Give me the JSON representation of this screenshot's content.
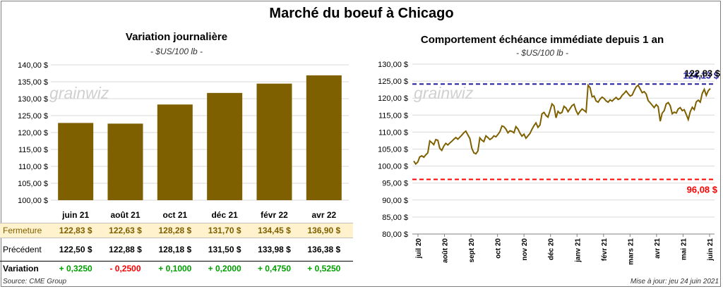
{
  "title": "Marché du boeuf à Chicago",
  "left": {
    "title": "Variation journalière",
    "unit": "- $US/100 lb -",
    "watermark": "grainwiz",
    "row_labels": {
      "close": "Fermeture",
      "prev": "Précédent",
      "var": "Variation"
    },
    "close": [
      "122,83 $",
      "122,63 $",
      "128,28 $",
      "131,70 $",
      "134,45 $",
      "136,90 $"
    ],
    "prev": [
      "122,50 $",
      "122,88 $",
      "128,18 $",
      "131,50 $",
      "133,98 $",
      "136,38 $"
    ],
    "variation": [
      "+ 0,3250",
      "- 0,2500",
      "+ 0,1000",
      "+ 0,2000",
      "+ 0,4750",
      "+ 0,5250"
    ]
  },
  "right": {
    "title": "Comportement  échéance immédiate depuis 1 an",
    "unit": "- $US/100 lb -",
    "watermark": "grainwiz",
    "hi_label": "122,83 $",
    "hi_label_under": "124,13 $",
    "lo_label": "96,08 $"
  },
  "footer": {
    "source": "Source: CME Group",
    "updated": "Mise à jour: jeu 24 juin 2021"
  },
  "colors": {
    "bar": "#7f6000",
    "line": "#7f6000",
    "close_row": "#fff2cc",
    "hi": "#1f1f9f",
    "lo": "#ff0000",
    "pos": "#00a000",
    "neg": "#ff0000"
  },
  "chart_data": [
    {
      "type": "bar",
      "categories": [
        "juin 21",
        "août 21",
        "oct 21",
        "déc 21",
        "févr 22",
        "avr 22"
      ],
      "values": [
        122.83,
        122.63,
        128.28,
        131.7,
        134.45,
        136.9
      ],
      "ylim": [
        100,
        140
      ],
      "yticks": [
        "100,00 $",
        "105,00 $",
        "110,00 $",
        "115,00 $",
        "120,00 $",
        "125,00 $",
        "130,00 $",
        "135,00 $",
        "140,00 $"
      ],
      "grid": true
    },
    {
      "type": "line",
      "x_ticks": [
        "juil 20",
        "août 20",
        "sept 20",
        "oct 20",
        "nov 20",
        "déc 20",
        "janv 21",
        "févr 21",
        "mars 21",
        "avr 21",
        "mai 21",
        "juin 21"
      ],
      "yticks": [
        "80,00 $",
        "85,00 $",
        "90,00 $",
        "95,00 $",
        "100,00 $",
        "105,00 $",
        "110,00 $",
        "115,00 $",
        "120,00 $",
        "125,00 $",
        "130,00 $"
      ],
      "ylim": [
        80,
        130
      ],
      "hline_high": 124.13,
      "hline_low": 96.08,
      "series": [
        {
          "values": [
            101.5,
            100.6,
            101.2,
            102.7,
            103.0,
            102.6,
            103.3,
            103.9,
            107.4,
            106.9,
            106.3,
            107.8,
            107.6,
            105.2,
            104.6,
            105.9,
            106.7,
            106.2,
            106.8,
            107.3,
            107.9,
            108.4,
            107.9,
            108.5,
            109.1,
            109.8,
            110.3,
            109.2,
            108.1,
            105.2,
            103.9,
            103.6,
            104.4,
            108.3,
            107.6,
            107.2,
            108.9,
            108.4,
            107.8,
            108.2,
            108.9,
            108.6,
            109.3,
            110.1,
            111.8,
            111.6,
            110.9,
            109.8,
            110.4,
            110.2,
            109.8,
            111.6,
            110.9,
            109.7,
            108.8,
            109.4,
            108.2,
            108.9,
            109.6,
            110.8,
            111.9,
            112.7,
            111.4,
            112.1,
            115.4,
            115.8,
            114.9,
            114.4,
            116.3,
            118.3,
            117.7,
            114.2,
            116.1,
            115.5,
            115.8,
            117.6,
            117.1,
            116.0,
            116.9,
            117.8,
            118.2,
            116.3,
            115.2,
            116.1,
            116.8,
            116.4,
            115.9,
            123.8,
            123.1,
            120.4,
            120.6,
            119.2,
            118.8,
            119.7,
            120.3,
            119.9,
            119.2,
            118.8,
            119.5,
            119.1,
            119.7,
            120.2,
            119.6,
            119.9,
            120.8,
            121.4,
            122.1,
            121.3,
            120.6,
            120.9,
            122.2,
            123.3,
            123.8,
            122.7,
            121.6,
            121.9,
            121.2,
            119.3,
            118.6,
            117.9,
            117.2,
            118.1,
            117.5,
            113.2,
            115.6,
            116.3,
            118.3,
            118.7,
            117.8,
            115.4,
            115.9,
            115.6,
            116.8,
            117.2,
            116.3,
            116.6,
            115.2,
            113.7,
            116.0,
            117.3,
            116.6,
            118.9,
            119.4,
            118.8,
            121.4,
            122.6,
            120.8,
            122.2,
            122.83
          ]
        }
      ]
    }
  ]
}
